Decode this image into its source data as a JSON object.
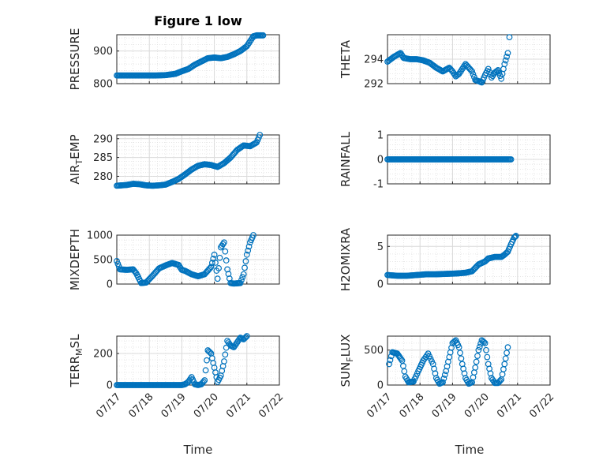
{
  "figure": {
    "title": "Figure 1 low",
    "xlabel": "Time"
  },
  "chart_data": [
    {
      "type": "scatter",
      "ylabel": "PRESSURE",
      "ylim": [
        800,
        950
      ],
      "yticks": [
        "800",
        "900"
      ],
      "xticks": [],
      "marker_color": "#0072BD",
      "points": [
        [
          0.0,
          825
        ],
        [
          0.3,
          825
        ],
        [
          0.6,
          825
        ],
        [
          0.9,
          825
        ],
        [
          1.2,
          825
        ],
        [
          1.5,
          826
        ],
        [
          1.8,
          830
        ],
        [
          2.0,
          838
        ],
        [
          2.2,
          845
        ],
        [
          2.4,
          858
        ],
        [
          2.6,
          868
        ],
        [
          2.8,
          878
        ],
        [
          3.0,
          880
        ],
        [
          3.2,
          878
        ],
        [
          3.4,
          882
        ],
        [
          3.6,
          890
        ],
        [
          3.8,
          900
        ],
        [
          4.0,
          915
        ],
        [
          4.1,
          930
        ],
        [
          4.2,
          945
        ],
        [
          4.3,
          948
        ],
        [
          4.5,
          948
        ]
      ]
    },
    {
      "type": "scatter",
      "ylabel": "THETA",
      "ylim": [
        292,
        296
      ],
      "yticks": [
        "292",
        "294"
      ],
      "xticks": [],
      "marker_color": "#0072BD",
      "points": [
        [
          0.0,
          293.8
        ],
        [
          0.2,
          294.2
        ],
        [
          0.4,
          294.5
        ],
        [
          0.5,
          294.1
        ],
        [
          0.7,
          294.0
        ],
        [
          0.9,
          294.0
        ],
        [
          1.1,
          293.9
        ],
        [
          1.3,
          293.7
        ],
        [
          1.5,
          293.3
        ],
        [
          1.7,
          293.0
        ],
        [
          1.9,
          293.3
        ],
        [
          2.0,
          293.0
        ],
        [
          2.1,
          292.6
        ],
        [
          2.2,
          292.8
        ],
        [
          2.4,
          293.6
        ],
        [
          2.6,
          293.0
        ],
        [
          2.7,
          292.3
        ],
        [
          2.9,
          292.1
        ],
        [
          3.0,
          292.7
        ],
        [
          3.1,
          293.2
        ],
        [
          3.2,
          292.5
        ],
        [
          3.3,
          292.9
        ],
        [
          3.4,
          293.1
        ],
        [
          3.5,
          292.4
        ],
        [
          3.6,
          293.6
        ],
        [
          3.7,
          294.5
        ],
        [
          3.75,
          295.8
        ]
      ]
    },
    {
      "type": "scatter",
      "ylabel": "AIR_TEMP",
      "ylim": [
        278,
        291
      ],
      "yticks": [
        "280",
        "285",
        "290"
      ],
      "xticks": [],
      "marker_color": "#0072BD",
      "points": [
        [
          0.0,
          277.5
        ],
        [
          0.3,
          277.7
        ],
        [
          0.5,
          278.0
        ],
        [
          0.7,
          277.9
        ],
        [
          0.9,
          277.6
        ],
        [
          1.1,
          277.5
        ],
        [
          1.3,
          277.6
        ],
        [
          1.5,
          277.8
        ],
        [
          1.7,
          278.5
        ],
        [
          1.9,
          279.3
        ],
        [
          2.1,
          280.5
        ],
        [
          2.3,
          281.8
        ],
        [
          2.5,
          282.8
        ],
        [
          2.7,
          283.2
        ],
        [
          2.9,
          283.0
        ],
        [
          3.1,
          282.5
        ],
        [
          3.3,
          283.5
        ],
        [
          3.5,
          285.0
        ],
        [
          3.7,
          287.0
        ],
        [
          3.9,
          288.2
        ],
        [
          4.1,
          288.0
        ],
        [
          4.3,
          289.0
        ],
        [
          4.4,
          291.0
        ]
      ]
    },
    {
      "type": "scatter",
      "ylabel": "RAINFALL",
      "ylim": [
        -1,
        1
      ],
      "yticks": [
        "-1",
        "0",
        "1"
      ],
      "xticks": [],
      "marker_color": "#0072BD",
      "points": [
        [
          0.0,
          0
        ],
        [
          0.3,
          0
        ],
        [
          0.6,
          0
        ],
        [
          0.9,
          0
        ],
        [
          1.2,
          0
        ],
        [
          1.5,
          0
        ],
        [
          1.8,
          0
        ],
        [
          2.1,
          0
        ],
        [
          2.4,
          0
        ],
        [
          2.7,
          0
        ],
        [
          3.0,
          0
        ],
        [
          3.3,
          0
        ],
        [
          3.6,
          0
        ],
        [
          3.8,
          0
        ]
      ]
    },
    {
      "type": "scatter",
      "ylabel": "MIXDEPTH",
      "ylim": [
        0,
        1000
      ],
      "yticks": [
        "0",
        "500",
        "1000"
      ],
      "xticks": [],
      "marker_color": "#0072BD",
      "points": [
        [
          0.0,
          470
        ],
        [
          0.1,
          300
        ],
        [
          0.3,
          290
        ],
        [
          0.5,
          300
        ],
        [
          0.6,
          220
        ],
        [
          0.75,
          20
        ],
        [
          0.9,
          30
        ],
        [
          1.1,
          170
        ],
        [
          1.3,
          320
        ],
        [
          1.5,
          380
        ],
        [
          1.7,
          430
        ],
        [
          1.9,
          390
        ],
        [
          2.0,
          290
        ],
        [
          2.1,
          270
        ],
        [
          2.3,
          200
        ],
        [
          2.5,
          160
        ],
        [
          2.7,
          200
        ],
        [
          2.9,
          350
        ],
        [
          3.0,
          600
        ],
        [
          3.1,
          110
        ],
        [
          3.2,
          750
        ],
        [
          3.3,
          850
        ],
        [
          3.4,
          300
        ],
        [
          3.5,
          20
        ],
        [
          3.6,
          10
        ],
        [
          3.8,
          20
        ],
        [
          3.9,
          200
        ],
        [
          4.0,
          600
        ],
        [
          4.1,
          850
        ],
        [
          4.2,
          1000
        ]
      ]
    },
    {
      "type": "scatter",
      "ylabel": "H2OMIXRA",
      "ylim": [
        0,
        6.5
      ],
      "yticks": [
        "0",
        "5"
      ],
      "xticks": [],
      "marker_color": "#0072BD",
      "points": [
        [
          0.0,
          1.2
        ],
        [
          0.3,
          1.1
        ],
        [
          0.6,
          1.1
        ],
        [
          0.9,
          1.2
        ],
        [
          1.2,
          1.3
        ],
        [
          1.5,
          1.3
        ],
        [
          1.8,
          1.35
        ],
        [
          2.1,
          1.4
        ],
        [
          2.4,
          1.5
        ],
        [
          2.6,
          1.7
        ],
        [
          2.8,
          2.6
        ],
        [
          3.0,
          3.0
        ],
        [
          3.1,
          3.4
        ],
        [
          3.3,
          3.6
        ],
        [
          3.5,
          3.6
        ],
        [
          3.6,
          3.9
        ],
        [
          3.7,
          4.3
        ],
        [
          3.8,
          5.3
        ],
        [
          3.9,
          6.2
        ],
        [
          3.95,
          6.4
        ]
      ]
    },
    {
      "type": "scatter",
      "ylabel": "TERR_MSL",
      "ylim": [
        0,
        310
      ],
      "yticks": [
        "0",
        "200"
      ],
      "xticks": [
        "07/17",
        "07/18",
        "07/19",
        "07/20",
        "07/21",
        "07/22"
      ],
      "xlim": [
        0,
        5
      ],
      "marker_color": "#0072BD",
      "points": [
        [
          0.0,
          0
        ],
        [
          0.3,
          0
        ],
        [
          0.6,
          0
        ],
        [
          0.9,
          0
        ],
        [
          1.2,
          0
        ],
        [
          1.5,
          0
        ],
        [
          1.8,
          0
        ],
        [
          2.0,
          0
        ],
        [
          2.1,
          5
        ],
        [
          2.2,
          20
        ],
        [
          2.3,
          50
        ],
        [
          2.4,
          5
        ],
        [
          2.5,
          0
        ],
        [
          2.6,
          5
        ],
        [
          2.7,
          30
        ],
        [
          2.8,
          220
        ],
        [
          2.9,
          200
        ],
        [
          3.0,
          110
        ],
        [
          3.1,
          20
        ],
        [
          3.2,
          60
        ],
        [
          3.3,
          150
        ],
        [
          3.4,
          280
        ],
        [
          3.5,
          250
        ],
        [
          3.6,
          240
        ],
        [
          3.7,
          270
        ],
        [
          3.8,
          300
        ],
        [
          3.9,
          290
        ],
        [
          4.0,
          310
        ]
      ]
    },
    {
      "type": "scatter",
      "ylabel": "SUN_FLUX",
      "ylim": [
        0,
        700
      ],
      "yticks": [
        "0",
        "500"
      ],
      "xticks": [
        "07/17",
        "07/18",
        "07/19",
        "07/20",
        "07/21",
        "07/22"
      ],
      "xlim": [
        0,
        5
      ],
      "marker_color": "#0072BD",
      "points": [
        [
          0.05,
          300
        ],
        [
          0.15,
          470
        ],
        [
          0.3,
          450
        ],
        [
          0.45,
          350
        ],
        [
          0.55,
          120
        ],
        [
          0.65,
          40
        ],
        [
          0.8,
          50
        ],
        [
          0.95,
          200
        ],
        [
          1.1,
          350
        ],
        [
          1.25,
          450
        ],
        [
          1.4,
          300
        ],
        [
          1.5,
          100
        ],
        [
          1.6,
          20
        ],
        [
          1.7,
          40
        ],
        [
          1.8,
          200
        ],
        [
          1.9,
          400
        ],
        [
          2.0,
          600
        ],
        [
          2.1,
          640
        ],
        [
          2.2,
          540
        ],
        [
          2.3,
          300
        ],
        [
          2.4,
          100
        ],
        [
          2.5,
          20
        ],
        [
          2.6,
          40
        ],
        [
          2.7,
          250
        ],
        [
          2.8,
          500
        ],
        [
          2.9,
          640
        ],
        [
          3.0,
          600
        ],
        [
          3.1,
          300
        ],
        [
          3.2,
          100
        ],
        [
          3.3,
          30
        ],
        [
          3.4,
          30
        ],
        [
          3.5,
          80
        ],
        [
          3.6,
          300
        ],
        [
          3.7,
          540
        ]
      ]
    }
  ]
}
